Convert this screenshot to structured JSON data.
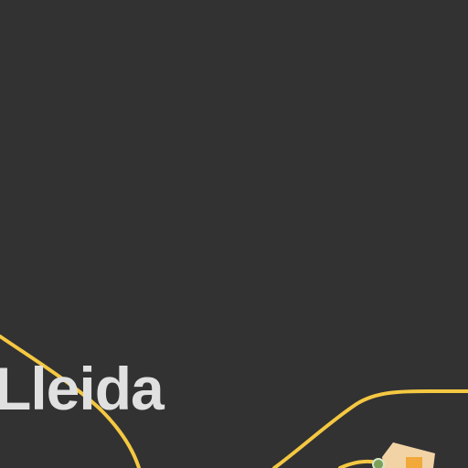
{
  "map": {
    "background_color": "#323232",
    "road_color": "#f5c842",
    "city": {
      "name": "Lleida",
      "label_color": "#e0e0e0"
    },
    "poi": {
      "icon": "park-icon",
      "fill_color": "#7aa05a",
      "stroke_color": "#d6e6c8"
    },
    "building_colors": {
      "block": "#f2d3a6",
      "marker": "#f0a93a"
    }
  }
}
